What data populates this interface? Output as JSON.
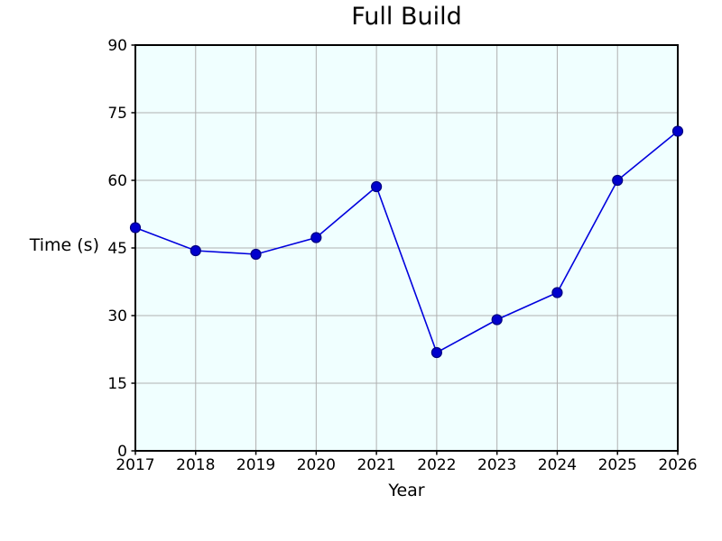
{
  "chart_data": {
    "type": "line",
    "title": "Full Build",
    "xlabel": "Year",
    "ylabel": "Time (s)",
    "x": [
      2017,
      2018,
      2019,
      2020,
      2021,
      2022,
      2023,
      2024,
      2025,
      2026
    ],
    "values": [
      49.5,
      44.4,
      43.6,
      47.3,
      58.6,
      21.8,
      29.1,
      35.1,
      60.0,
      70.9
    ],
    "series_name": "Full Build",
    "ylim": [
      0,
      90
    ],
    "yticks": [
      0,
      15,
      30,
      45,
      60,
      75,
      90
    ],
    "xticks": [
      2017,
      2018,
      2019,
      2020,
      2021,
      2022,
      2023,
      2024,
      2025,
      2026
    ],
    "grid": true,
    "legend": false,
    "style": {
      "line_color": "#0000dd",
      "marker_fill": "#0000cd",
      "marker_edge": "#000080",
      "plot_bg": "#f0ffff",
      "grid_color": "#b0b0b0",
      "spine_color": "#000000",
      "tick_color": "#000000"
    }
  }
}
